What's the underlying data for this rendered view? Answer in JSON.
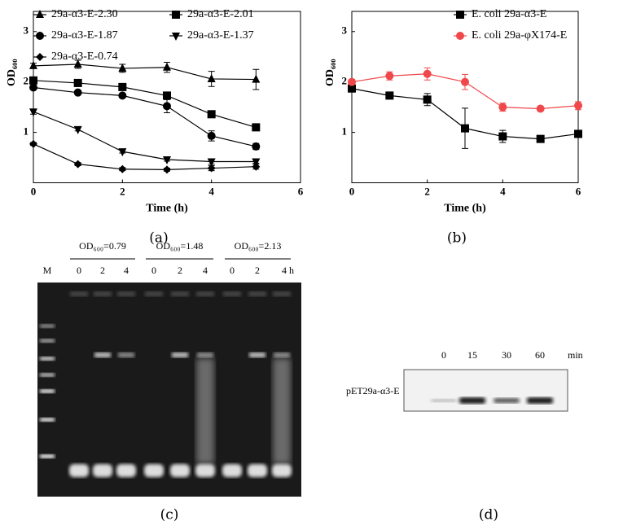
{
  "chart_data": [
    {
      "type": "line",
      "caption": "(a)",
      "x_label": "Time (h)",
      "y_label": "OD₆₀₀",
      "x": [
        0,
        1,
        2,
        3,
        4,
        5
      ],
      "xlim": [
        0,
        6
      ],
      "xticks": [
        0,
        2,
        4,
        6
      ],
      "ylim": [
        0,
        3.4
      ],
      "yticks": [
        1,
        2,
        3
      ],
      "legend": "top",
      "series": [
        {
          "name": "29a-α3-E-2.30",
          "color": "#000000",
          "marker": "triangle",
          "values": [
            2.32,
            2.35,
            2.27,
            2.29,
            2.06,
            2.05
          ],
          "errors": [
            0.05,
            0.08,
            0.08,
            0.1,
            0.15,
            0.2
          ]
        },
        {
          "name": "29a-α3-E-2.01",
          "color": "#000000",
          "marker": "square",
          "values": [
            2.03,
            1.98,
            1.9,
            1.73,
            1.36,
            1.1
          ],
          "errors": [
            0.03,
            0.06,
            0.03,
            0.05,
            0.05,
            0.03
          ]
        },
        {
          "name": "29a-α3-E-1.87",
          "color": "#000000",
          "marker": "circle",
          "values": [
            1.89,
            1.79,
            1.73,
            1.52,
            0.93,
            0.72
          ],
          "errors": [
            0.03,
            0.03,
            0.03,
            0.13,
            0.1,
            0.06
          ]
        },
        {
          "name": "29a-α3-E-1.37",
          "color": "#000000",
          "marker": "triangle-down",
          "values": [
            1.41,
            1.06,
            0.62,
            0.46,
            0.42,
            0.42
          ],
          "errors": [
            0.05,
            0.03,
            0.03,
            0.03,
            0.05,
            0.03
          ]
        },
        {
          "name": "29a-α3-E-0.74",
          "color": "#000000",
          "marker": "diamond",
          "values": [
            0.77,
            0.37,
            0.27,
            0.26,
            0.29,
            0.32
          ],
          "errors": [
            0.03,
            0.03,
            0.03,
            0.03,
            0.05,
            0.05
          ]
        }
      ]
    },
    {
      "type": "line",
      "caption": "(b)",
      "x_label": "Time (h)",
      "y_label": "OD₆₀₀",
      "x": [
        0,
        1,
        2,
        3,
        4,
        5,
        6
      ],
      "xlim": [
        0,
        6
      ],
      "xticks": [
        0,
        2,
        4,
        6
      ],
      "ylim": [
        0,
        3.4
      ],
      "yticks": [
        1,
        2,
        3
      ],
      "legend": "upper right",
      "series": [
        {
          "name": "E. coli 29a-α3-E",
          "color": "#000000",
          "marker": "square",
          "values": [
            1.87,
            1.73,
            1.65,
            1.08,
            0.92,
            0.87,
            0.97
          ],
          "errors": [
            0.05,
            0.03,
            0.12,
            0.4,
            0.12,
            0.04,
            0.04
          ]
        },
        {
          "name": "E. coli 29a-φX174-E",
          "color": "#f0474a",
          "marker": "circle",
          "values": [
            2.0,
            2.12,
            2.16,
            2.0,
            1.5,
            1.47,
            1.53
          ],
          "errors": [
            0.05,
            0.08,
            0.12,
            0.15,
            0.08,
            0.04,
            0.08
          ]
        }
      ]
    }
  ],
  "gel_c": {
    "caption": "(c)",
    "groups": [
      "OD₆₀₀=0.79",
      "OD₆₀₀=1.48",
      "OD₆₀₀=2.13"
    ],
    "lanes": [
      "M",
      "0",
      "2",
      "4",
      "0",
      "2",
      "4",
      "0",
      "2",
      "4 h"
    ]
  },
  "blot_d": {
    "caption": "(d)",
    "row_label": "pET29a-α3-E",
    "lanes": [
      "0",
      "15",
      "30",
      "60",
      "min"
    ]
  }
}
